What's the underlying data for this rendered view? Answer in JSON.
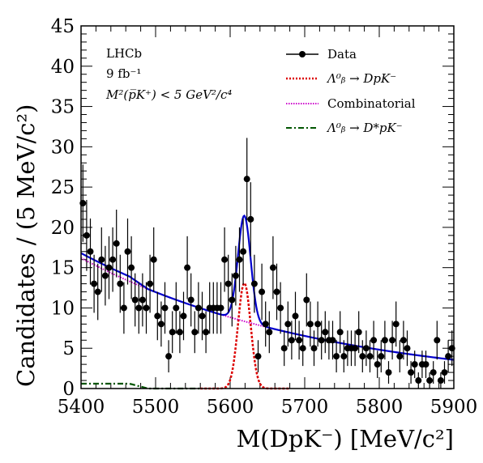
{
  "chart_data": {
    "type": "scatter",
    "title": "",
    "xlabel": "M(DpK⁻) [MeV/c²]",
    "ylabel": "Candidates / (5 MeV/c²)",
    "xlim": [
      5400,
      5900
    ],
    "ylim": [
      0,
      45
    ],
    "x_ticks": [
      "5400",
      "5500",
      "5600",
      "5700",
      "5800",
      "5900"
    ],
    "y_ticks": [
      "0",
      "5",
      "10",
      "15",
      "20",
      "25",
      "30",
      "35",
      "40",
      "45"
    ],
    "annotations": [
      "LHCb",
      "9 fb⁻¹",
      "M²(p̅K⁺) < 5 GeV²/c⁴"
    ],
    "legend_position": "top-right",
    "legend": [
      {
        "label": "Data",
        "style": "marker-line"
      },
      {
        "label": "Λ⁰ᵦ → DpK⁻",
        "style": "dotted"
      },
      {
        "label": "Combinatorial",
        "style": "dotted"
      },
      {
        "label": "Λ⁰ᵦ → D*pK⁻",
        "style": "dashdot"
      }
    ],
    "colors": {
      "total": "#0000cc",
      "signal": "#dd0000",
      "combinatorial": "#cc00cc",
      "partial": "#005500",
      "data": "#000000"
    },
    "data": {
      "x": [
        5402.5,
        5407.5,
        5412.5,
        5417.5,
        5422.5,
        5427.5,
        5432.5,
        5437.5,
        5442.5,
        5447.5,
        5452.5,
        5457.5,
        5462.5,
        5467.5,
        5472.5,
        5477.5,
        5482.5,
        5487.5,
        5492.5,
        5497.5,
        5502.5,
        5507.5,
        5512.5,
        5517.5,
        5522.5,
        5527.5,
        5532.5,
        5537.5,
        5542.5,
        5547.5,
        5552.5,
        5557.5,
        5562.5,
        5567.5,
        5572.5,
        5577.5,
        5582.5,
        5587.5,
        5592.5,
        5597.5,
        5602.5,
        5607.5,
        5612.5,
        5617.5,
        5622.5,
        5627.5,
        5632.5,
        5637.5,
        5642.5,
        5647.5,
        5652.5,
        5657.5,
        5662.5,
        5667.5,
        5672.5,
        5677.5,
        5682.5,
        5687.5,
        5692.5,
        5697.5,
        5702.5,
        5707.5,
        5712.5,
        5717.5,
        5722.5,
        5727.5,
        5732.5,
        5737.5,
        5742.5,
        5747.5,
        5752.5,
        5757.5,
        5762.5,
        5767.5,
        5772.5,
        5777.5,
        5782.5,
        5787.5,
        5792.5,
        5797.5,
        5802.5,
        5807.5,
        5812.5,
        5817.5,
        5822.5,
        5827.5,
        5832.5,
        5837.5,
        5842.5,
        5847.5,
        5852.5,
        5857.5,
        5862.5,
        5867.5,
        5872.5,
        5877.5,
        5882.5,
        5887.5,
        5892.5,
        5897.5
      ],
      "y": [
        23,
        19,
        17,
        13,
        12,
        16,
        14,
        15,
        16,
        18,
        13,
        10,
        17,
        15,
        11,
        10,
        11,
        10,
        13,
        16,
        9,
        8,
        10,
        4,
        7,
        10,
        7,
        9,
        15,
        11,
        7,
        10,
        9,
        7,
        10,
        10,
        10,
        10,
        16,
        13,
        11,
        14,
        16,
        17,
        26,
        21,
        13,
        4,
        12,
        8,
        7,
        15,
        12,
        10,
        5,
        8,
        6,
        9,
        6,
        5,
        11,
        8,
        5,
        8,
        6,
        7,
        6,
        6,
        4,
        7,
        4,
        5,
        5,
        5,
        7,
        4,
        5,
        4,
        6,
        3,
        4,
        6,
        2,
        6,
        8,
        4,
        6,
        5,
        2,
        3,
        1,
        3,
        3,
        1,
        2,
        6,
        1,
        2,
        4,
        5
      ],
      "err": [
        4.8,
        4.4,
        4.1,
        3.6,
        3.5,
        4.0,
        3.7,
        3.9,
        4.0,
        4.2,
        3.6,
        3.2,
        4.1,
        3.9,
        3.3,
        3.2,
        3.3,
        3.2,
        3.6,
        4.0,
        3.0,
        2.8,
        3.2,
        2.0,
        2.6,
        3.2,
        2.6,
        3.0,
        3.9,
        3.3,
        2.6,
        3.2,
        3.0,
        2.6,
        3.2,
        3.2,
        3.2,
        3.2,
        4.0,
        3.6,
        3.3,
        3.7,
        4.0,
        4.1,
        5.1,
        4.6,
        3.6,
        2.0,
        3.5,
        2.8,
        2.6,
        3.9,
        3.5,
        3.2,
        2.2,
        2.8,
        2.4,
        3.0,
        2.4,
        2.2,
        3.3,
        2.8,
        2.2,
        2.8,
        2.4,
        2.6,
        2.4,
        2.4,
        2.0,
        2.6,
        2.0,
        2.2,
        2.2,
        2.2,
        2.6,
        2.0,
        2.2,
        2.0,
        2.4,
        1.7,
        2.0,
        2.4,
        1.4,
        2.4,
        2.8,
        2.0,
        2.4,
        2.2,
        1.4,
        1.7,
        1.0,
        1.7,
        1.7,
        1.0,
        1.4,
        2.4,
        1.0,
        1.4,
        2.0,
        2.2
      ]
    },
    "fit_model": {
      "combinatorial": {
        "a": 16.2,
        "tau": 330
      },
      "signal": {
        "mean": 5619,
        "sigma": 8.5,
        "amplitude": 13.1
      },
      "partial": {
        "amplitude": 0.6,
        "start": 5400,
        "end": 5480
      }
    }
  }
}
